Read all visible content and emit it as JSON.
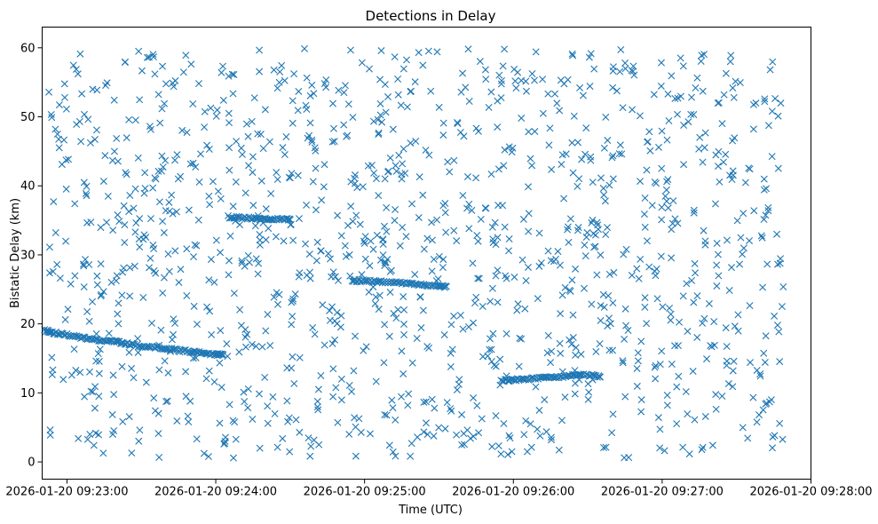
{
  "chart_data": {
    "type": "scatter",
    "title": "Detections in Delay",
    "xlabel": "Time (UTC)",
    "ylabel": "Bistatic Delay (km)",
    "marker": "x",
    "color": "#1f77b4",
    "grid": false,
    "legend": "none",
    "xlim": [
      "2026-01-20 09:22:50",
      "2026-01-20 09:28:00"
    ],
    "ylim": [
      -2.5,
      63.0
    ],
    "x_ticks": [
      "2026-01-20 09:23:00",
      "2026-01-20 09:24:00",
      "2026-01-20 09:25:00",
      "2026-01-20 09:26:00",
      "2026-01-20 09:27:00",
      "2026-01-20 09:28:00"
    ],
    "y_ticks": [
      0,
      10,
      20,
      30,
      40,
      50,
      60
    ],
    "tracks": [
      {
        "x": [
          "2026-01-20 09:22:51",
          "2026-01-20 09:22:55",
          "2026-01-20 09:23:00",
          "2026-01-20 09:23:05",
          "2026-01-20 09:23:10",
          "2026-01-20 09:23:15",
          "2026-01-20 09:23:20",
          "2026-01-20 09:23:25",
          "2026-01-20 09:23:30",
          "2026-01-20 09:23:35",
          "2026-01-20 09:23:40",
          "2026-01-20 09:23:45",
          "2026-01-20 09:23:50",
          "2026-01-20 09:23:55",
          "2026-01-20 09:24:00",
          "2026-01-20 09:24:03"
        ],
        "y": [
          19.0,
          18.7,
          18.4,
          18.1,
          17.8,
          17.6,
          17.4,
          17.1,
          16.8,
          16.6,
          16.4,
          16.2,
          16.0,
          15.8,
          15.6,
          15.5
        ]
      },
      {
        "x": [
          "2026-01-20 09:24:55",
          "2026-01-20 09:25:00",
          "2026-01-20 09:25:05",
          "2026-01-20 09:25:10",
          "2026-01-20 09:25:15",
          "2026-01-20 09:25:20",
          "2026-01-20 09:25:25",
          "2026-01-20 09:25:30",
          "2026-01-20 09:25:33"
        ],
        "y": [
          26.3,
          26.2,
          26.1,
          26.0,
          25.9,
          25.8,
          25.6,
          25.5,
          25.4
        ]
      },
      {
        "x": [
          "2026-01-20 09:25:55",
          "2026-01-20 09:26:00",
          "2026-01-20 09:26:05",
          "2026-01-20 09:26:10",
          "2026-01-20 09:26:15",
          "2026-01-20 09:26:20",
          "2026-01-20 09:26:25",
          "2026-01-20 09:26:30",
          "2026-01-20 09:26:35"
        ],
        "y": [
          11.8,
          11.9,
          12.0,
          12.1,
          12.3,
          12.4,
          12.5,
          12.6,
          12.3
        ]
      },
      {
        "x": [
          "2026-01-20 09:24:05",
          "2026-01-20 09:24:10",
          "2026-01-20 09:24:15",
          "2026-01-20 09:24:20",
          "2026-01-20 09:24:25",
          "2026-01-20 09:24:30"
        ],
        "y": [
          35.5,
          35.4,
          35.3,
          35.2,
          35.2,
          35.1
        ]
      }
    ],
    "noise_region": {
      "x_range": [
        "2026-01-20 09:22:52",
        "2026-01-20 09:27:49"
      ],
      "y_range": [
        0.5,
        60.0
      ],
      "approx_count": 1300
    }
  }
}
